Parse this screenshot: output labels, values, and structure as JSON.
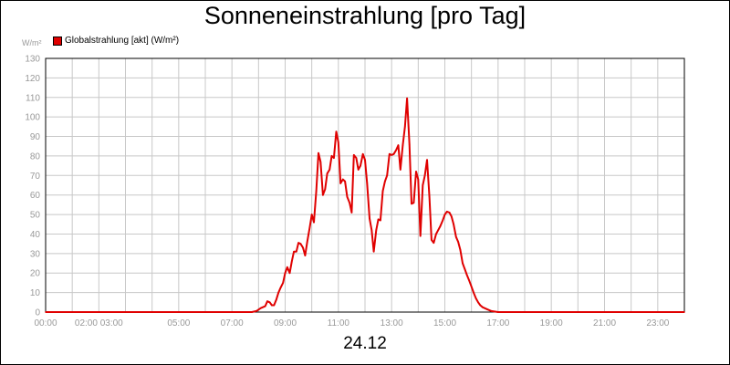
{
  "chart_data": {
    "type": "line",
    "title": "Sonneneinstrahlung [pro Tag]",
    "ylabel": "W/m²",
    "xlabel": "24.12",
    "ylim": [
      0,
      130
    ],
    "xlim": [
      0,
      24
    ],
    "grid": true,
    "legend_position": "top-left",
    "y_ticks": [
      "0",
      "10",
      "20",
      "30",
      "40",
      "50",
      "60",
      "70",
      "80",
      "90",
      "100",
      "110",
      "120",
      "130"
    ],
    "x_ticks": [
      {
        "x": 0,
        "label": "00:00"
      },
      {
        "x": 2,
        "label": "02:00 03:00"
      },
      {
        "x": 5,
        "label": "05:00"
      },
      {
        "x": 7,
        "label": "07:00"
      },
      {
        "x": 9,
        "label": "09:00"
      },
      {
        "x": 11,
        "label": "11:00"
      },
      {
        "x": 13,
        "label": "13:00"
      },
      {
        "x": 15,
        "label": "15:00"
      },
      {
        "x": 17,
        "label": "17:00"
      },
      {
        "x": 19,
        "label": "19:00"
      },
      {
        "x": 21,
        "label": "21:00"
      },
      {
        "x": 23,
        "label": "23:00"
      }
    ],
    "series": [
      {
        "name": "Globalstrahlung [akt] (W/m²)",
        "color": "#e00000",
        "points": [
          [
            0,
            0
          ],
          [
            7.75,
            0
          ],
          [
            7.92,
            0.5
          ],
          [
            8.08,
            2
          ],
          [
            8.25,
            3
          ],
          [
            8.33,
            5.5
          ],
          [
            8.42,
            5
          ],
          [
            8.5,
            3.5
          ],
          [
            8.58,
            3.5
          ],
          [
            8.67,
            6.5
          ],
          [
            8.75,
            10
          ],
          [
            8.83,
            12.5
          ],
          [
            8.92,
            15
          ],
          [
            9,
            20
          ],
          [
            9.08,
            23
          ],
          [
            9.17,
            20
          ],
          [
            9.25,
            26
          ],
          [
            9.33,
            31
          ],
          [
            9.42,
            31
          ],
          [
            9.5,
            35.5
          ],
          [
            9.58,
            35
          ],
          [
            9.67,
            33
          ],
          [
            9.75,
            29
          ],
          [
            9.83,
            36
          ],
          [
            9.92,
            43
          ],
          [
            10,
            50
          ],
          [
            10.08,
            46
          ],
          [
            10.17,
            62
          ],
          [
            10.25,
            81.5
          ],
          [
            10.33,
            77
          ],
          [
            10.42,
            60
          ],
          [
            10.5,
            63
          ],
          [
            10.58,
            71
          ],
          [
            10.67,
            73
          ],
          [
            10.75,
            80
          ],
          [
            10.83,
            79
          ],
          [
            10.92,
            92.5
          ],
          [
            11,
            87
          ],
          [
            11.08,
            66
          ],
          [
            11.17,
            68
          ],
          [
            11.25,
            67
          ],
          [
            11.33,
            59
          ],
          [
            11.42,
            56
          ],
          [
            11.5,
            51
          ],
          [
            11.58,
            80.5
          ],
          [
            11.67,
            79
          ],
          [
            11.75,
            73
          ],
          [
            11.83,
            75
          ],
          [
            11.92,
            81
          ],
          [
            12,
            78
          ],
          [
            12.08,
            66
          ],
          [
            12.17,
            48
          ],
          [
            12.25,
            42
          ],
          [
            12.33,
            31
          ],
          [
            12.42,
            42
          ],
          [
            12.5,
            47.5
          ],
          [
            12.58,
            47
          ],
          [
            12.67,
            62
          ],
          [
            12.75,
            67
          ],
          [
            12.83,
            70
          ],
          [
            12.92,
            81
          ],
          [
            13,
            80.5
          ],
          [
            13.08,
            81
          ],
          [
            13.17,
            83
          ],
          [
            13.25,
            85.5
          ],
          [
            13.33,
            73
          ],
          [
            13.42,
            85.5
          ],
          [
            13.5,
            95
          ],
          [
            13.58,
            109.5
          ],
          [
            13.67,
            86
          ],
          [
            13.75,
            55.5
          ],
          [
            13.83,
            56
          ],
          [
            13.92,
            72
          ],
          [
            14,
            68
          ],
          [
            14.08,
            39
          ],
          [
            14.17,
            65
          ],
          [
            14.25,
            70
          ],
          [
            14.33,
            78
          ],
          [
            14.42,
            59
          ],
          [
            14.5,
            37
          ],
          [
            14.58,
            35.5
          ],
          [
            14.67,
            40
          ],
          [
            14.75,
            42
          ],
          [
            14.83,
            44
          ],
          [
            14.92,
            47
          ],
          [
            15,
            50
          ],
          [
            15.08,
            51.5
          ],
          [
            15.17,
            51
          ],
          [
            15.25,
            49
          ],
          [
            15.33,
            45
          ],
          [
            15.42,
            38.5
          ],
          [
            15.5,
            36
          ],
          [
            15.58,
            32
          ],
          [
            15.67,
            25
          ],
          [
            15.75,
            22
          ],
          [
            15.83,
            19
          ],
          [
            15.92,
            16
          ],
          [
            16,
            13
          ],
          [
            16.08,
            10
          ],
          [
            16.17,
            7
          ],
          [
            16.25,
            5
          ],
          [
            16.33,
            3.5
          ],
          [
            16.42,
            2.5
          ],
          [
            16.58,
            1.5
          ],
          [
            16.75,
            0.5
          ],
          [
            17,
            0
          ],
          [
            24,
            0
          ]
        ]
      }
    ]
  }
}
